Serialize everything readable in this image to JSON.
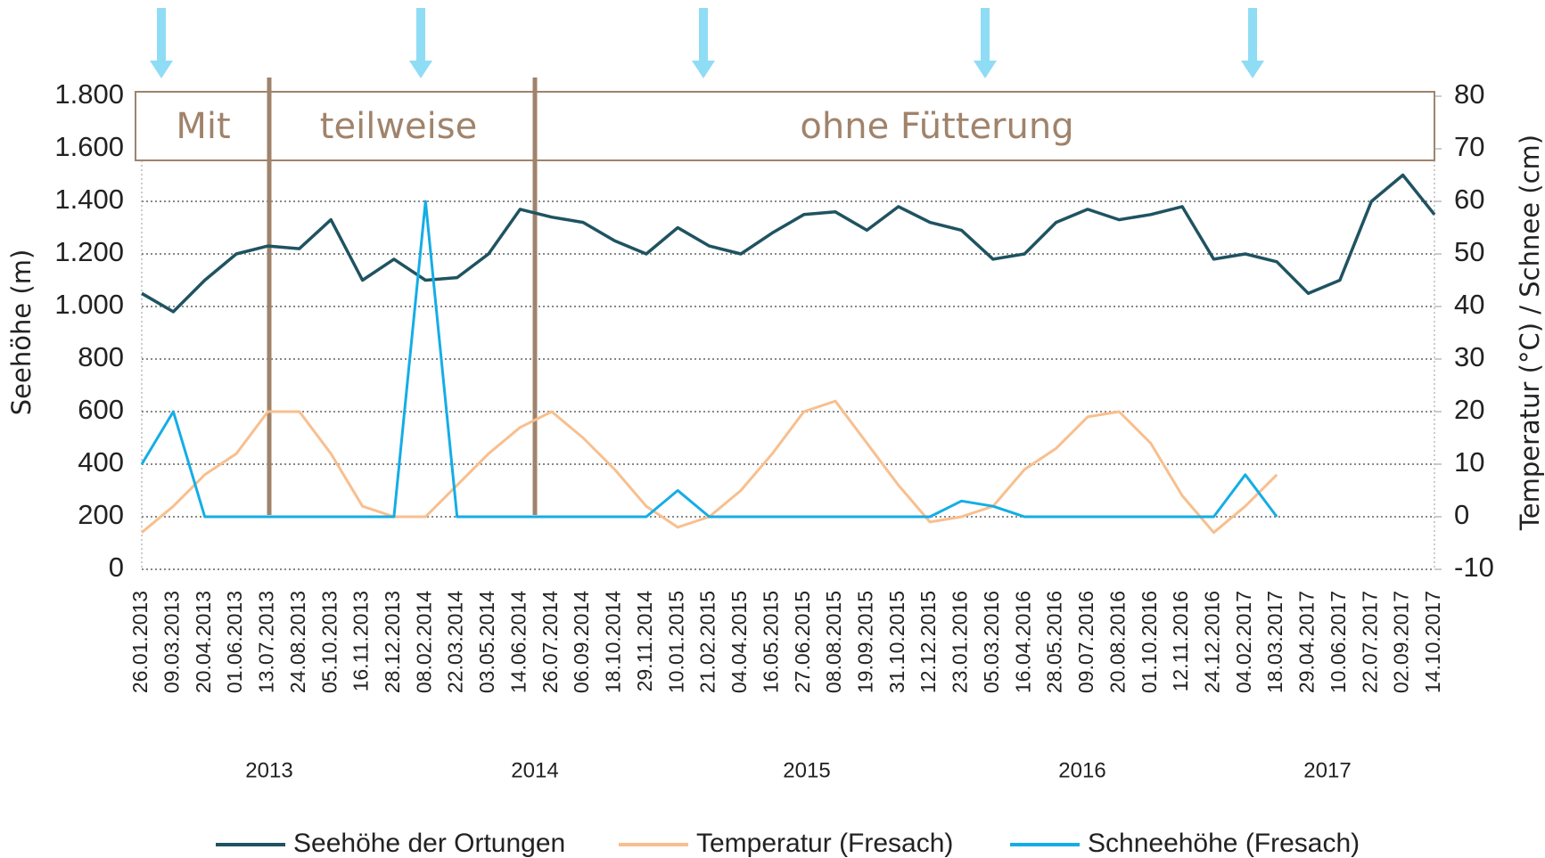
{
  "chart_data": {
    "type": "line",
    "y_label": "Seehöhe (m)",
    "y2_label": "Temperatur (°C) / Schnee (cm)",
    "categories": [
      "26.01.2013",
      "09.03.2013",
      "20.04.2013",
      "01.06.2013",
      "13.07.2013",
      "24.08.2013",
      "05.10.2013",
      "16.11.2013",
      "28.12.2013",
      "08.02.2014",
      "22.03.2014",
      "03.05.2014",
      "14.06.2014",
      "26.07.2014",
      "06.09.2014",
      "18.10.2014",
      "29.11.2014",
      "10.01.2015",
      "21.02.2015",
      "04.04.2015",
      "16.05.2015",
      "27.06.2015",
      "08.08.2015",
      "19.09.2015",
      "31.10.2015",
      "12.12.2015",
      "23.01.2016",
      "05.03.2016",
      "16.04.2016",
      "28.05.2016",
      "09.07.2016",
      "20.08.2016",
      "01.10.2016",
      "12.11.2016",
      "24.12.2016",
      "04.02.2017",
      "18.03.2017",
      "29.04.2017",
      "10.06.2017",
      "22.07.2017",
      "02.09.2017",
      "14.10.2017"
    ],
    "year_labels": [
      "2013",
      "2014",
      "2015",
      "2016",
      "2017"
    ],
    "annotations": [
      "Mit",
      "teilweise",
      "ohne Fütterung"
    ],
    "series": [
      {
        "name": "Seehöhe der Ortungen",
        "color": "#1f5361",
        "values": [
          1050,
          980,
          1100,
          1200,
          1230,
          1220,
          1330,
          1100,
          1180,
          1100,
          1110,
          1200,
          1370,
          1340,
          1320,
          1250,
          1200,
          1300,
          1230,
          1200,
          1280,
          1350,
          1360,
          1290,
          1380,
          1320,
          1290,
          1180,
          1200,
          1320,
          1370,
          1330,
          1350,
          1380,
          1180,
          1200,
          1170,
          1050,
          1100,
          1400,
          1500,
          1350
        ]
      },
      {
        "name": "Temperatur (Fresach)",
        "color": "#f8bf8e",
        "axis": "y2",
        "values": [
          -3,
          2,
          8,
          12,
          20,
          20,
          12,
          2,
          0,
          0,
          6,
          12,
          17,
          20,
          15,
          9,
          2,
          -2,
          0,
          5,
          12,
          20,
          22,
          14,
          6,
          -1,
          0,
          2,
          9,
          13,
          19,
          20,
          14,
          4,
          -3,
          2,
          8,
          null,
          null,
          null,
          null,
          null
        ]
      },
      {
        "name": "Schneehöhe (Fresach)",
        "color": "#14ade6",
        "axis": "y2",
        "values": [
          10,
          20,
          0,
          0,
          0,
          0,
          0,
          0,
          0,
          60,
          0,
          0,
          0,
          0,
          0,
          0,
          0,
          5,
          0,
          0,
          0,
          0,
          0,
          0,
          0,
          0,
          3,
          2,
          0,
          0,
          0,
          0,
          0,
          0,
          0,
          8,
          0,
          null,
          null,
          null,
          null,
          null
        ]
      }
    ],
    "ylim": [
      0,
      1800
    ],
    "yticks": [
      0,
      200,
      400,
      600,
      800,
      {
        "value": 1000,
        "label": "1.000"
      },
      {
        "value": 1200,
        "label": "1.200"
      },
      {
        "value": 1400,
        "label": "1.400"
      },
      {
        "value": 1600,
        "label": "1.600"
      },
      {
        "value": 1800,
        "label": "1.800"
      }
    ],
    "y2lim": [
      -10,
      80
    ],
    "y2ticks": [
      -10,
      0,
      10,
      20,
      30,
      40,
      50,
      60,
      70,
      80
    ],
    "grid": true,
    "legend": "bottom"
  }
}
